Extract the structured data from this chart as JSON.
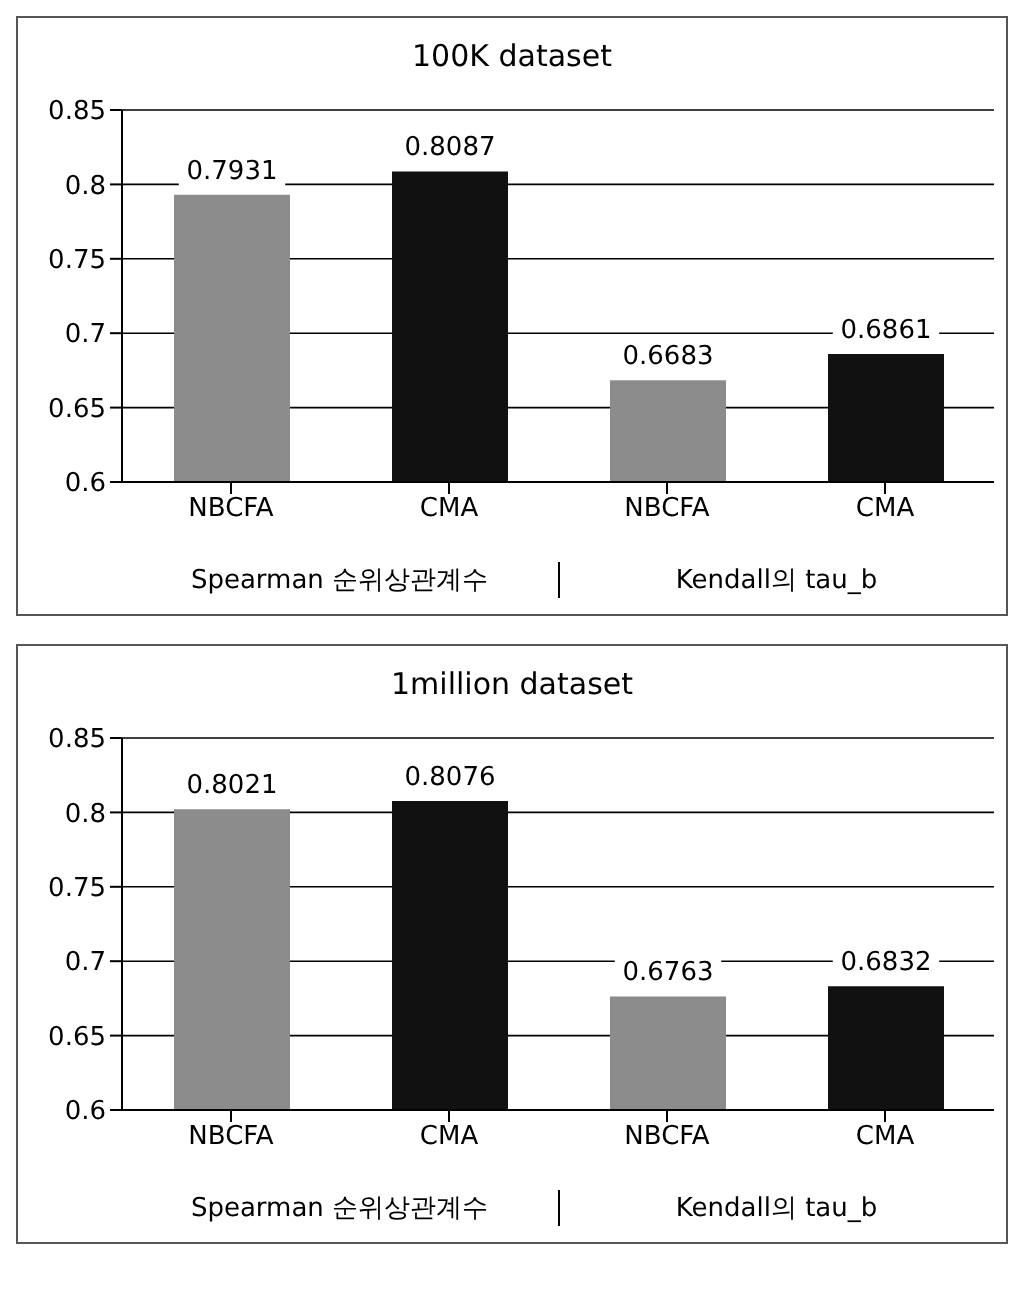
{
  "chart_data": [
    {
      "type": "bar",
      "title": "100K dataset",
      "categories": [
        "NBCFA",
        "CMA",
        "NBCFA",
        "CMA"
      ],
      "values": [
        0.7931,
        0.8087,
        0.6683,
        0.6861
      ],
      "colors": [
        "#8c8c8c",
        "#111111",
        "#8c8c8c",
        "#111111"
      ],
      "ylim": [
        0.6,
        0.85
      ],
      "yticks": [
        0.6,
        0.65,
        0.7,
        0.75,
        0.8,
        0.85
      ],
      "grid": "y",
      "data_labels": true,
      "annotations": [
        "Spearman 순위상관계수",
        "Kendall의 tau_b"
      ]
    },
    {
      "type": "bar",
      "title": "1million dataset",
      "categories": [
        "NBCFA",
        "CMA",
        "NBCFA",
        "CMA"
      ],
      "values": [
        0.8021,
        0.8076,
        0.6763,
        0.6832
      ],
      "colors": [
        "#8c8c8c",
        "#111111",
        "#8c8c8c",
        "#111111"
      ],
      "ylim": [
        0.6,
        0.85
      ],
      "yticks": [
        0.6,
        0.65,
        0.7,
        0.75,
        0.8,
        0.85
      ],
      "grid": "y",
      "data_labels": true,
      "annotations": [
        "Spearman 순위상관계수",
        "Kendall의 tau_b"
      ]
    }
  ]
}
